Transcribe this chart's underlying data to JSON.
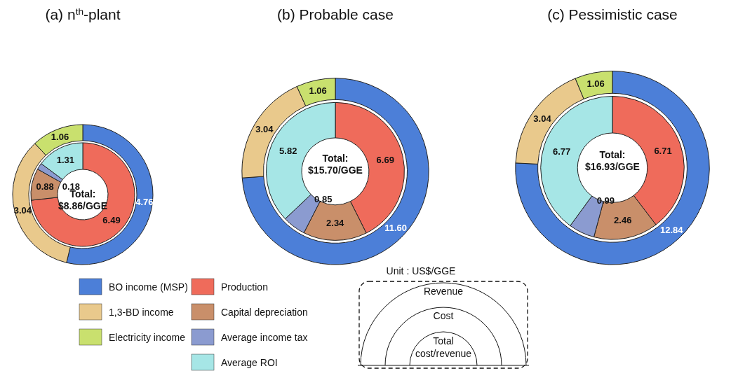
{
  "chart_data": [
    {
      "type": "donut",
      "title": "(a) n$^{th}$-plant",
      "categories": [
        "BO income (MSP)",
        "1,3-BD income",
        "Electricity income",
        "Production",
        "Capital depreciation",
        "Average income tax",
        "Average ROI"
      ],
      "colors": [
        "#4c7fd8",
        "#e9c98c",
        "#c9e06e",
        "#ef6b5b",
        "#c98f6a",
        "#8b9bd0",
        "#a6e6e6"
      ],
      "series": [
        {
          "values": [
            null,
            null,
            null,
            6.49,
            0.88,
            0.18,
            1.31
          ],
          "value_labels": [
            null,
            null,
            null,
            "6.49",
            "0.88",
            "0.18",
            "1.31"
          ]
        },
        {
          "values": [
            4.76,
            3.04,
            1.06,
            null,
            null,
            null,
            null
          ],
          "value_labels": [
            "4.76",
            "3.04",
            "1.06",
            null,
            null,
            null,
            null
          ]
        }
      ],
      "legend": "bottom",
      "annotations": [
        "Total: $8.86/GGE"
      ]
    },
    {
      "type": "donut",
      "title": "(b) Probable case",
      "categories": [
        null,
        null,
        null,
        null,
        null,
        null,
        null
      ],
      "colors": [
        "#4c7fd8",
        "#e9c98c",
        "#c9e06e",
        "#ef6b5b",
        "#c98f6a",
        "#8b9bd0",
        "#a6e6e6"
      ],
      "series": [
        {
          "values": [
            null,
            null,
            null,
            6.69,
            2.34,
            0.85,
            5.82
          ],
          "value_labels": [
            null,
            null,
            null,
            "6.69",
            "2.34",
            "0.85",
            "5.82"
          ]
        },
        {
          "values": [
            11.6,
            3.04,
            1.06,
            null,
            null,
            null,
            null
          ],
          "value_labels": [
            "11.60",
            "3.04",
            "1.06",
            null,
            null,
            null,
            null
          ]
        }
      ],
      "annotations": [
        "Total: $15.70/GGE"
      ]
    },
    {
      "type": "donut",
      "title": "(c) Pessimistic case",
      "categories": [
        null,
        null,
        null,
        null,
        null,
        null,
        null
      ],
      "colors": [
        "#4c7fd8",
        "#e9c98c",
        "#c9e06e",
        "#ef6b5b",
        "#c98f6a",
        "#8b9bd0",
        "#a6e6e6"
      ],
      "series": [
        {
          "values": [
            null,
            null,
            null,
            6.71,
            2.46,
            0.99,
            6.77
          ],
          "value_labels": [
            null,
            null,
            null,
            "6.71",
            "2.46",
            "0.99",
            "6.77"
          ]
        },
        {
          "values": [
            12.84,
            3.04,
            1.06,
            null,
            null,
            null,
            null
          ],
          "value_labels": [
            "12.84",
            "3.04",
            "1.06",
            null,
            null,
            null,
            null
          ]
        }
      ],
      "annotations": [
        "Total: $16.93/GGE"
      ]
    },
    {
      "type": "other",
      "title": "Unit : US$/GGE",
      "annotations": [
        "Revenue",
        "Cost",
        "Total cost/revenue"
      ]
    }
  ]
}
